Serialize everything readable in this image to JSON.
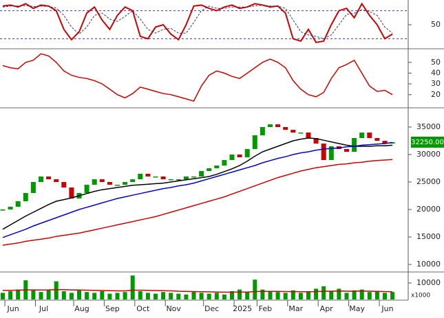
{
  "chart_data": [
    {
      "type": "line",
      "ylim": [
        0,
        100
      ],
      "yticks": [
        50
      ],
      "hlines": [
        20,
        80
      ],
      "series": [
        {
          "color": "#cc0000",
          "values": [
            90,
            92,
            88,
            95,
            85,
            92,
            90,
            80,
            40,
            18,
            35,
            75,
            88,
            60,
            40,
            70,
            88,
            80,
            25,
            20,
            45,
            50,
            30,
            18,
            50,
            90,
            92,
            85,
            80,
            88,
            92,
            85,
            88,
            95,
            92,
            88,
            90,
            75,
            20,
            15,
            40,
            12,
            15,
            50,
            80,
            85,
            65,
            95,
            70,
            50,
            20,
            30
          ]
        },
        {
          "color": "#333366",
          "dash": true,
          "values": [
            88,
            90,
            90,
            91,
            89,
            90,
            89,
            86,
            70,
            45,
            30,
            45,
            70,
            75,
            62,
            57,
            68,
            80,
            62,
            40,
            32,
            40,
            42,
            32,
            32,
            55,
            80,
            90,
            85,
            85,
            88,
            88,
            88,
            90,
            92,
            90,
            90,
            85,
            60,
            35,
            28,
            25,
            20,
            28,
            50,
            72,
            75,
            82,
            78,
            70,
            45,
            32
          ]
        }
      ]
    },
    {
      "type": "line",
      "ylim": [
        9,
        62
      ],
      "yticks": [
        20,
        30,
        40,
        50
      ],
      "series": [
        {
          "color": "#cc0000",
          "values": [
            47,
            45,
            44,
            50,
            52,
            58,
            56,
            50,
            42,
            38,
            36,
            35,
            33,
            30,
            25,
            20,
            17,
            21,
            27,
            25,
            23,
            21,
            20,
            18,
            16,
            14,
            28,
            38,
            42,
            40,
            37,
            35,
            40,
            45,
            50,
            53,
            50,
            45,
            33,
            25,
            20,
            18,
            22,
            35,
            45,
            48,
            52,
            40,
            28,
            23,
            24,
            20
          ]
        }
      ]
    },
    {
      "type": "candlestick",
      "ylim": [
        8750,
        38375
      ],
      "yticks": [
        10000,
        15000,
        20000,
        25000,
        30000,
        35000
      ],
      "up_color": "#009900",
      "down_color": "#cc0000",
      "open": [
        19800,
        20000,
        20500,
        21500,
        23000,
        25000,
        26000,
        25500,
        25000,
        24000,
        22000,
        23000,
        24500,
        25500,
        25000,
        24500,
        24500,
        25000,
        25500,
        26500,
        26000,
        26000,
        25500,
        25500,
        25500,
        26000,
        26000,
        27000,
        27500,
        28000,
        29000,
        30000,
        29500,
        31000,
        33500,
        35000,
        35500,
        35000,
        34500,
        34000,
        34000,
        33000,
        32000,
        29000,
        31500,
        31000,
        30500,
        33000,
        34000,
        33000,
        32500,
        32000
      ],
      "close": [
        20000,
        20500,
        21500,
        23000,
        25000,
        26000,
        25500,
        25000,
        24000,
        22000,
        23000,
        24500,
        25500,
        25000,
        24500,
        24500,
        25000,
        25500,
        26500,
        26000,
        26000,
        25500,
        25500,
        25500,
        26000,
        26000,
        27000,
        27500,
        28000,
        29000,
        30000,
        29500,
        31000,
        33500,
        35000,
        35500,
        35000,
        34500,
        34000,
        34000,
        33000,
        32000,
        29000,
        31500,
        31000,
        30500,
        33000,
        34000,
        33000,
        32500,
        32000,
        32250
      ],
      "series": [
        {
          "color": "#000000",
          "values": [
            16400,
            17200,
            18000,
            18800,
            19500,
            20200,
            20900,
            21500,
            21800,
            22100,
            22500,
            22900,
            23300,
            23600,
            23800,
            24000,
            24200,
            24400,
            24500,
            24600,
            24700,
            24800,
            25000,
            25200,
            25400,
            25600,
            25800,
            26000,
            26400,
            26900,
            27400,
            28000,
            28800,
            29700,
            30500,
            31000,
            31500,
            32000,
            32500,
            32800,
            33000,
            32900,
            32600,
            32300,
            32000,
            31700,
            31500,
            31500,
            31500,
            31600,
            31600,
            31700
          ]
        },
        {
          "color": "#0000cc",
          "values": [
            14900,
            15400,
            15900,
            16400,
            17000,
            17500,
            18000,
            18500,
            19000,
            19500,
            20000,
            20400,
            20800,
            21200,
            21600,
            22000,
            22300,
            22600,
            22900,
            23200,
            23500,
            23800,
            24000,
            24300,
            24500,
            24800,
            25200,
            25600,
            26000,
            26400,
            26800,
            27200,
            27600,
            28000,
            28500,
            28900,
            29300,
            29600,
            30000,
            30300,
            30500,
            30800,
            31000,
            31100,
            31200,
            31400,
            31500,
            31700,
            31800,
            31900,
            32000,
            32200
          ]
        },
        {
          "color": "#cc0000",
          "values": [
            13500,
            13700,
            13900,
            14200,
            14400,
            14600,
            14800,
            15100,
            15300,
            15500,
            15700,
            16000,
            16300,
            16600,
            16900,
            17200,
            17500,
            17800,
            18100,
            18400,
            18700,
            19100,
            19500,
            19900,
            20300,
            20700,
            21100,
            21500,
            21900,
            22300,
            22800,
            23300,
            23800,
            24300,
            24800,
            25300,
            25800,
            26200,
            26600,
            27000,
            27300,
            27600,
            27800,
            28000,
            28200,
            28300,
            28500,
            28600,
            28800,
            28900,
            29000,
            29100
          ]
        }
      ],
      "last_price": 32250,
      "last_price_label": "32250.00"
    },
    {
      "type": "bar",
      "ylim": [
        0,
        15800
      ],
      "yticks": [
        10000
      ],
      "color": "#009900",
      "unit_label": "x1000",
      "categories": [
        null,
        "Jun",
        null,
        null,
        null,
        "Jul",
        null,
        null,
        null,
        null,
        "Aug",
        null,
        null,
        null,
        "Sep",
        null,
        null,
        null,
        "Oct",
        null,
        null,
        null,
        "Nov",
        null,
        null,
        null,
        null,
        "Dec",
        null,
        null,
        null,
        "2025",
        null,
        null,
        "Feb",
        null,
        null,
        null,
        "Mar",
        null,
        null,
        null,
        "Apr",
        null,
        null,
        null,
        "May",
        null,
        null,
        null,
        "Jun",
        null
      ],
      "values": [
        4000,
        5000,
        6000,
        11600,
        5500,
        4500,
        6000,
        11000,
        5000,
        4000,
        5500,
        4500,
        4000,
        5000,
        3500,
        4000,
        4500,
        14500,
        5000,
        4000,
        3500,
        4500,
        4000,
        3500,
        3000,
        4500,
        4000,
        3500,
        4000,
        3000,
        5000,
        6000,
        4500,
        12000,
        6000,
        5000,
        4500,
        4000,
        5500,
        4000,
        4500,
        6500,
        8000,
        5000,
        6500,
        4000,
        5500,
        6000,
        4500,
        5000,
        4000,
        4500
      ],
      "series": [
        {
          "color": "#cc0000",
          "values": [
            5500,
            5500,
            5600,
            5800,
            5800,
            5700,
            5800,
            6000,
            5900,
            5800,
            5700,
            5600,
            5500,
            5400,
            5300,
            5200,
            5200,
            5600,
            5600,
            5500,
            5400,
            5300,
            5200,
            5000,
            4900,
            4800,
            4700,
            4600,
            4500,
            4400,
            4400,
            4500,
            4500,
            4800,
            4900,
            4900,
            4900,
            4800,
            4800,
            4700,
            4700,
            4800,
            5000,
            5000,
            5100,
            5000,
            5000,
            5100,
            5000,
            4900,
            4800,
            4700
          ]
        }
      ]
    }
  ]
}
